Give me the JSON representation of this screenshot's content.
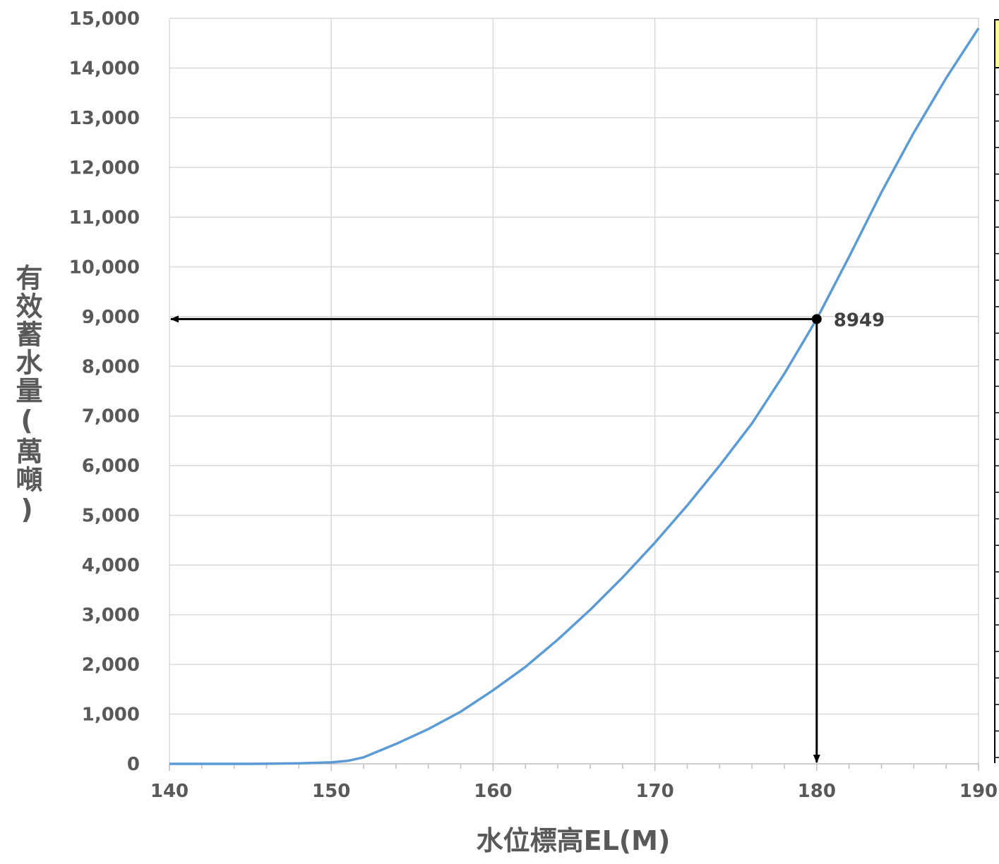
{
  "chart_data": {
    "type": "line",
    "title": "",
    "xlabel": "水位標高EL(M)",
    "ylabel": "有效蓄水量(萬噸)",
    "xlim": [
      140,
      190
    ],
    "ylim": [
      0,
      15000
    ],
    "x_ticks": [
      140,
      150,
      160,
      170,
      180,
      190
    ],
    "x_tick_labels": [
      "140",
      "150",
      "160",
      "170",
      "180",
      "190"
    ],
    "y_ticks": [
      0,
      1000,
      2000,
      3000,
      4000,
      5000,
      6000,
      7000,
      8000,
      9000,
      10000,
      11000,
      12000,
      13000,
      14000,
      15000
    ],
    "y_tick_labels": [
      "0",
      "1,000",
      "2,000",
      "3,000",
      "4,000",
      "5,000",
      "6,000",
      "7,000",
      "8,000",
      "9,000",
      "10,000",
      "11,000",
      "12,000",
      "13,000",
      "14,000",
      "15,000"
    ],
    "grid": true,
    "legend": "none",
    "series": [
      {
        "color": "#5b9bd5",
        "x": [
          140,
          145,
          148,
          150,
          151,
          152,
          154,
          156,
          158,
          160,
          162,
          164,
          166,
          168,
          170,
          172,
          174,
          176,
          178,
          180,
          182,
          184,
          186,
          188,
          190
        ],
        "y": [
          0,
          0,
          10,
          30,
          60,
          130,
          400,
          700,
          1050,
          1480,
          1950,
          2500,
          3100,
          3750,
          4450,
          5200,
          6000,
          6850,
          7850,
          8949,
          10200,
          11500,
          12700,
          13800,
          14800
        ]
      }
    ],
    "annotation": {
      "x": 180,
      "y": 8949,
      "label": "8949",
      "color": "#000000"
    }
  }
}
